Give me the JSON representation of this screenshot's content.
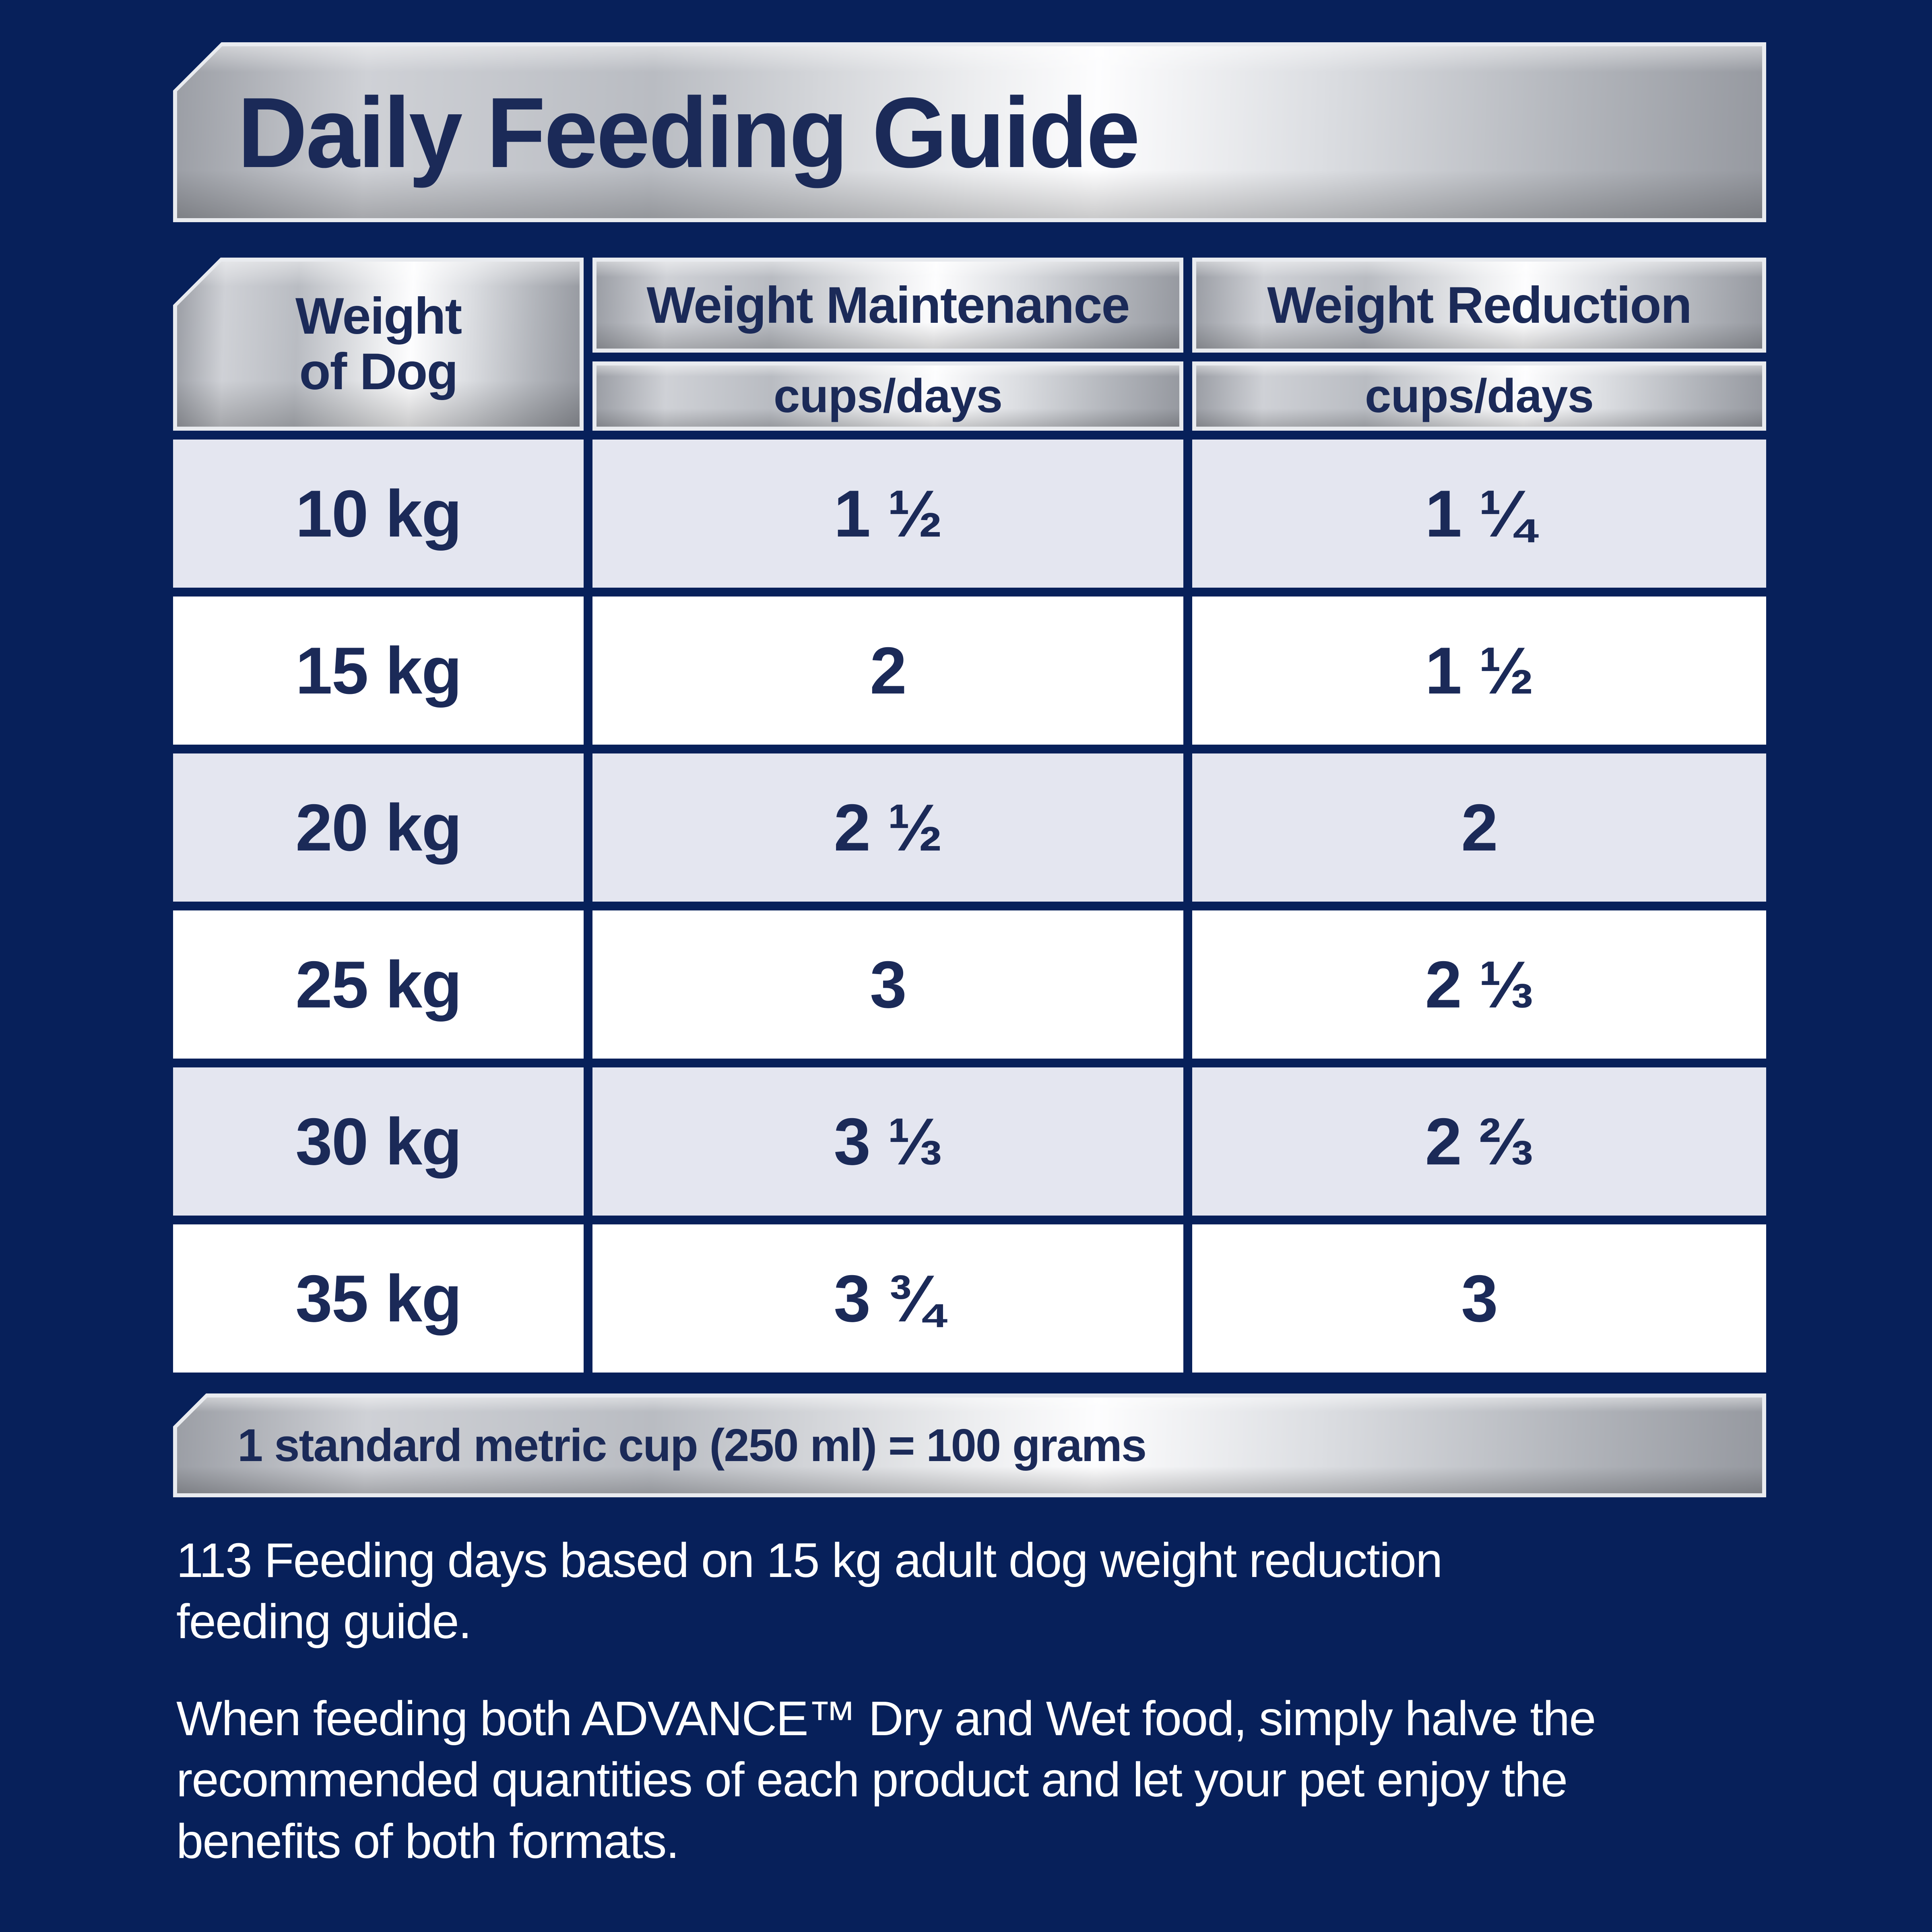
{
  "header": {
    "title": "Daily Feeding Guide"
  },
  "table": {
    "weight_header_line1": "Weight",
    "weight_header_line2": "of Dog",
    "col_maintenance": "Weight Maintenance",
    "col_reduction": "Weight Reduction",
    "unit_maintenance": "cups/days",
    "unit_reduction": "cups/days",
    "rows": [
      {
        "weight": "10 kg",
        "maintenance": "1 ½",
        "reduction": "1 ¼"
      },
      {
        "weight": "15 kg",
        "maintenance": "2",
        "reduction": "1 ½"
      },
      {
        "weight": "20 kg",
        "maintenance": "2 ½",
        "reduction": "2"
      },
      {
        "weight": "25 kg",
        "maintenance": "3",
        "reduction": "2 ⅓"
      },
      {
        "weight": "30 kg",
        "maintenance": "3 ⅓",
        "reduction": "2 ⅔"
      },
      {
        "weight": "35 kg",
        "maintenance": "3 ¾",
        "reduction": "3"
      }
    ]
  },
  "footnote_bar": "1 standard metric cup (250 ml) = 100 grams",
  "notes": [
    "113 Feeding days based on 15 kg adult dog weight reduction feeding guide.",
    "When feeding both ADVANCE™ Dry and Wet food, simply halve the recommended quantities of each product and let your pet enjoy the benefits of both formats."
  ],
  "colors": {
    "background_navy": "#07205a",
    "text_navy": "#1b2a58",
    "row_white": "#ffffff",
    "row_alt_lavender": "#e4e6f0",
    "plate_outline": "#e9ebef",
    "plate_silver_light": "#fdfdfe",
    "plate_silver_dark": "#9699a0",
    "note_text": "#ffffff"
  }
}
